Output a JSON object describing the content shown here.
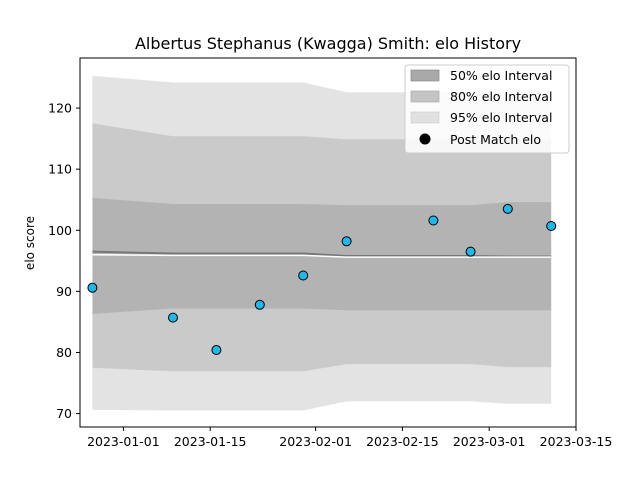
{
  "chart_data": {
    "type": "line",
    "title": "Albertus Stephanus (Kwagga) Smith: elo History",
    "xlabel": "",
    "ylabel": "elo score",
    "x_ticks": [
      "2023-01-01",
      "2023-01-15",
      "2023-02-01",
      "2023-02-15",
      "2023-03-01",
      "2023-03-15"
    ],
    "y_ticks": [
      "70",
      "80",
      "90",
      "100",
      "110",
      "120"
    ],
    "xlim": [
      "2022-12-25",
      "2023-03-15"
    ],
    "ylim": [
      67.8,
      128.2
    ],
    "grid": false,
    "legend_position": "top-right",
    "legend": [
      {
        "label": "50% elo Interval",
        "color": "#a9a9a9"
      },
      {
        "label": "80% elo Interval",
        "color": "#c4c4c4"
      },
      {
        "label": "95% elo Interval",
        "color": "#e1e1e1"
      },
      {
        "label": "Post Match elo",
        "color": "#000000"
      }
    ],
    "band_dates": [
      "2022-12-27",
      "2023-01-09",
      "2023-01-16",
      "2023-01-23",
      "2023-01-30",
      "2023-02-06",
      "2023-02-20",
      "2023-02-26",
      "2023-03-04",
      "2023-03-11"
    ],
    "mean_line": [
      96.5,
      96.2,
      96.2,
      96.2,
      96.2,
      95.8,
      95.8,
      95.8,
      95.7,
      95.7
    ],
    "band_50": {
      "lower": [
        96.0,
        95.9,
        95.9,
        95.9,
        95.9,
        95.6,
        95.6,
        95.6,
        95.6,
        95.6
      ],
      "upper": [
        105.3,
        104.3,
        104.3,
        104.3,
        104.3,
        104.1,
        104.1,
        104.1,
        104.6,
        104.6
      ]
    },
    "band_80": {
      "lower": [
        86.3,
        87.2,
        87.2,
        87.2,
        87.2,
        86.9,
        86.9,
        86.9,
        86.9,
        86.9
      ],
      "upper": [
        117.5,
        115.4,
        115.4,
        115.4,
        115.4,
        114.9,
        114.9,
        114.9,
        114.9,
        114.9
      ]
    },
    "band_95": {
      "lower": [
        77.5,
        76.9,
        76.9,
        76.9,
        76.9,
        78.1,
        78.1,
        78.1,
        77.6,
        77.6
      ],
      "upper": [
        125.3,
        124.2,
        124.2,
        124.2,
        124.2,
        122.6,
        122.6,
        122.6,
        122.6,
        122.6
      ]
    },
    "band_95_outer_lower": [
      70.6,
      70.5,
      70.5,
      70.5,
      70.5,
      72.0,
      72.0,
      72.0,
      71.6,
      71.6
    ],
    "points": [
      {
        "x": "2022-12-27",
        "y": 90.6
      },
      {
        "x": "2023-01-09",
        "y": 85.7
      },
      {
        "x": "2023-01-16",
        "y": 80.4
      },
      {
        "x": "2023-01-23",
        "y": 87.8
      },
      {
        "x": "2023-01-30",
        "y": 92.6
      },
      {
        "x": "2023-02-06",
        "y": 98.2
      },
      {
        "x": "2023-02-20",
        "y": 101.6
      },
      {
        "x": "2023-02-26",
        "y": 96.5
      },
      {
        "x": "2023-03-04",
        "y": 103.5
      },
      {
        "x": "2023-03-11",
        "y": 100.7
      }
    ],
    "point_color": "#1fb8e8"
  }
}
